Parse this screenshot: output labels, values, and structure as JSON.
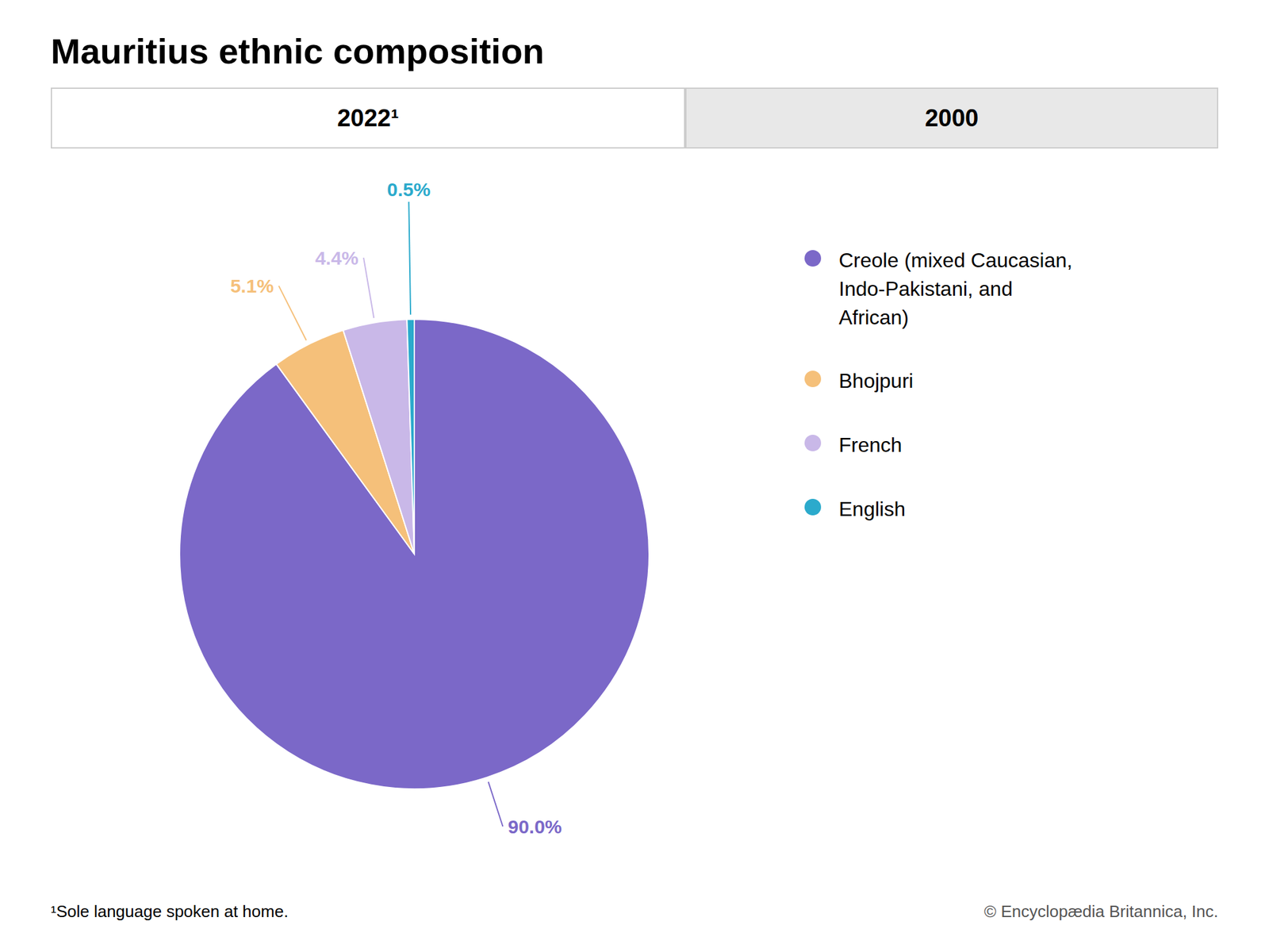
{
  "chart_data": {
    "type": "pie",
    "title": "Mauritius ethnic composition",
    "categories": [
      "Creole (mixed Caucasian,\nIndo-Pakistani, and\nAfrican)",
      "Bhojpuri",
      "French",
      "English"
    ],
    "values": [
      90.0,
      5.1,
      4.4,
      0.5
    ],
    "value_labels": [
      "90.0%",
      "5.1%",
      "4.4%",
      "0.5%"
    ],
    "colors": [
      "#7B68C8",
      "#F5C07A",
      "#C9B8E8",
      "#2BAACC"
    ],
    "data_labels": true,
    "legend": "right",
    "annotations": [
      "2022¹",
      "2000",
      "¹Sole language spoken at home.",
      "© Encyclopædia Britannica, Inc."
    ]
  }
}
